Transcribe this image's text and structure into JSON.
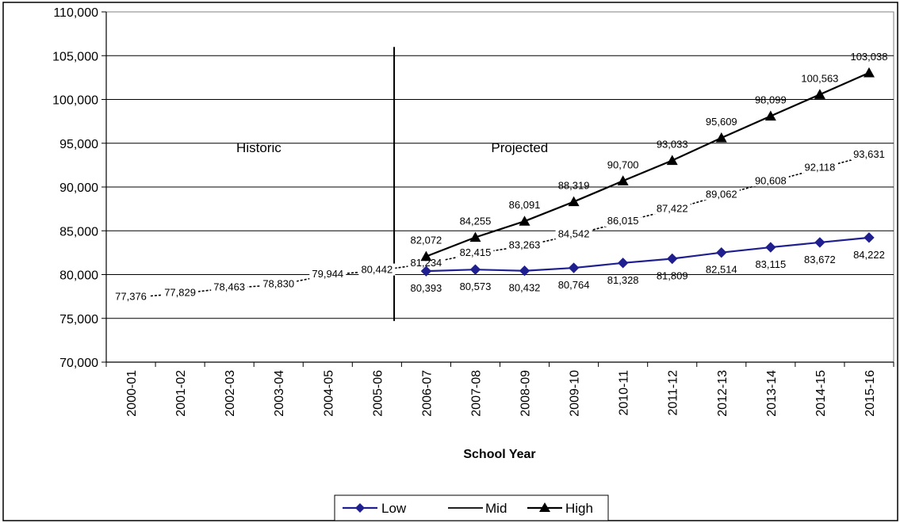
{
  "chart_data": {
    "type": "line",
    "xlabel": "School Year",
    "ylabel": "",
    "ylim": [
      70000,
      110000
    ],
    "y_ticks": [
      70000,
      75000,
      80000,
      85000,
      90000,
      95000,
      100000,
      105000,
      110000
    ],
    "y_tick_labels": [
      "70,000",
      "75,000",
      "80,000",
      "85,000",
      "90,000",
      "95,000",
      "100,000",
      "105,000",
      "110,000"
    ],
    "grid": "horizontal",
    "legend_position": "bottom",
    "categories": [
      "2000-01",
      "2001-02",
      "2002-03",
      "2003-04",
      "2004-05",
      "2005-06",
      "2006-07",
      "2007-08",
      "2008-09",
      "2009-10",
      "2010-11",
      "2011-12",
      "2012-13",
      "2013-14",
      "2014-15",
      "2015-16"
    ],
    "region_labels": [
      "Historic",
      "Projected"
    ],
    "series": [
      {
        "name": "Low",
        "color": "#1f1f8f",
        "marker": "diamond",
        "values": [
          null,
          null,
          null,
          null,
          null,
          null,
          80393,
          80573,
          80432,
          80764,
          81328,
          81809,
          82514,
          83115,
          83672,
          84222
        ],
        "labels": [
          null,
          null,
          null,
          null,
          null,
          null,
          "80,393",
          "80,573",
          "80,432",
          "80,764",
          "81,328",
          "81,809",
          "82,514",
          "83,115",
          "83,672",
          "84,222"
        ]
      },
      {
        "name": "Mid",
        "color": "#000000",
        "marker": "none",
        "values": [
          77376,
          77829,
          78463,
          78830,
          79944,
          80442,
          81234,
          82415,
          83263,
          84542,
          86015,
          87422,
          89062,
          90608,
          92118,
          93631
        ],
        "labels": [
          "77,376",
          "77,829",
          "78,463",
          "78,830",
          "79,944",
          "80,442",
          "81,234",
          "82,415",
          "83,263",
          "84,542",
          "86,015",
          "87,422",
          "89,062",
          "90,608",
          "92,118",
          "93,631"
        ]
      },
      {
        "name": "High",
        "color": "#000000",
        "marker": "triangle",
        "values": [
          null,
          null,
          null,
          null,
          null,
          null,
          82072,
          84255,
          86091,
          88319,
          90700,
          93033,
          95609,
          98099,
          100563,
          103038
        ],
        "labels": [
          null,
          null,
          null,
          null,
          null,
          null,
          "82,072",
          "84,255",
          "86,091",
          "88,319",
          "90,700",
          "93,033",
          "95,609",
          "98,099",
          "100,563",
          "103,038"
        ]
      }
    ]
  }
}
